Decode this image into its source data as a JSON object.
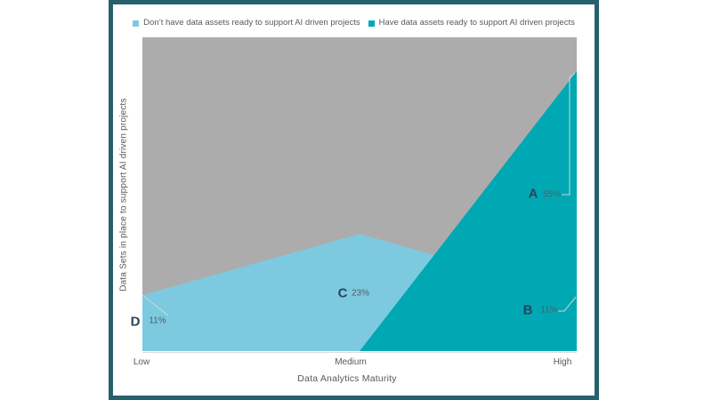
{
  "page": {
    "background": "#ffffff",
    "frame_color": "#26606d"
  },
  "chart_data": {
    "type": "area",
    "title": "",
    "xlabel": "Data Analytics Maturity",
    "ylabel": "Data Sets in place to support AI driven projects",
    "x_categories": [
      "Low",
      "Medium",
      "High"
    ],
    "legend_position": "top center",
    "grid": false,
    "y_axis_ticks_visible": false,
    "plot_background_color": "#acacac",
    "ylim_pct": [
      0,
      61.6
    ],
    "series": [
      {
        "name": "Don’t have data assets ready to support AI driven projects",
        "color": "#7dcae0",
        "values_pct": [
          11,
          23,
          11
        ]
      },
      {
        "name": "Have data assets ready to support AI driven projects",
        "color": "#00a8b4",
        "values_pct": [
          0,
          0,
          55
        ]
      }
    ],
    "annotations": [
      {
        "label": "A",
        "value": "55%",
        "x": "High"
      },
      {
        "label": "B",
        "value": "11%",
        "x": "High"
      },
      {
        "label": "C",
        "value": "23%",
        "x": "Medium"
      },
      {
        "label": "D",
        "value": "11%",
        "x": "Low"
      }
    ],
    "colors": {
      "annotation_letter": "#2a4559",
      "annotation_value": "#4e5e66",
      "leader_line": "#cfd6d8",
      "axis_text": "#595959"
    }
  }
}
